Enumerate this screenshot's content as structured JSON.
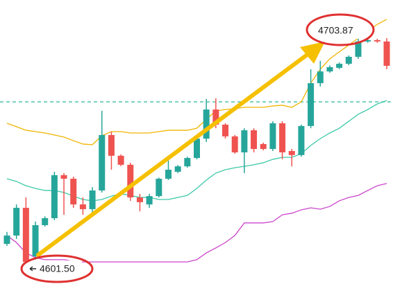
{
  "chart_data": {
    "type": "candlestick",
    "ylim": [
      4592,
      4718
    ],
    "up_color": "#26a69a",
    "down_color": "#ef5350",
    "open": [
      4609.8,
      4613.5,
      4625.8,
      4604.3,
      4618.1,
      4621.2,
      4640.3,
      4638.7,
      4627.3,
      4625.2,
      4633.5,
      4658.1,
      4648.9,
      4644.9,
      4630.4,
      4627.3,
      4631.0,
      4638.7,
      4641.8,
      4644.2,
      4647.9,
      4656.5,
      4669.4,
      4662.7,
      4657.5,
      4650.4,
      4660.2,
      4654.1,
      4651.9,
      4663.3,
      4651.0,
      4649.2,
      4662.1,
      4681.1,
      4686.3,
      4687.9,
      4689.7,
      4692.8,
      4699.6,
      4700.2,
      4699.6
    ],
    "high": [
      4615.1,
      4627.3,
      4630.4,
      4619.7,
      4622.0,
      4641.8,
      4641.2,
      4639.6,
      4630.4,
      4635.0,
      4668.8,
      4659.6,
      4649.5,
      4645.8,
      4632.0,
      4632.0,
      4639.2,
      4648.9,
      4644.8,
      4648.5,
      4658.1,
      4674.1,
      4674.4,
      4663.3,
      4658.1,
      4661.1,
      4661.1,
      4654.7,
      4664.2,
      4664.2,
      4651.9,
      4662.7,
      4687.3,
      4691.0,
      4689.0,
      4690.3,
      4693.4,
      4701.1,
      4703.87,
      4700.8,
      4701.1
    ],
    "low": [
      4608.9,
      4612.0,
      4601.5,
      4602.8,
      4617.5,
      4620.3,
      4622.7,
      4625.8,
      4622.7,
      4623.4,
      4632.6,
      4642.7,
      4644.3,
      4628.9,
      4624.3,
      4625.8,
      4630.4,
      4638.1,
      4641.2,
      4643.6,
      4647.3,
      4655.0,
      4661.1,
      4656.5,
      4649.8,
      4641.2,
      4650.4,
      4651.3,
      4651.0,
      4647.3,
      4644.2,
      4648.5,
      4661.1,
      4679.6,
      4685.7,
      4687.3,
      4689.1,
      4691.9,
      4699.0,
      4699.0,
      4687.3
    ],
    "close": [
      4613.5,
      4625.8,
      4601.8,
      4618.1,
      4621.2,
      4640.3,
      4638.7,
      4627.3,
      4625.2,
      4633.5,
      4658.1,
      4648.9,
      4644.9,
      4630.4,
      4628.3,
      4631.0,
      4638.7,
      4642.7,
      4644.2,
      4647.9,
      4656.5,
      4669.4,
      4662.7,
      4657.5,
      4650.4,
      4660.2,
      4651.9,
      4651.9,
      4663.3,
      4650.4,
      4649.2,
      4662.1,
      4681.1,
      4686.3,
      4688.2,
      4689.7,
      4692.8,
      4699.6,
      4700.2,
      4699.6,
      4688.8
    ],
    "lines": [
      {
        "color": "#f0b400",
        "values": [
          4663.3,
          4661.8,
          4660.2,
          4659.6,
          4659.0,
          4658.1,
          4657.2,
          4655.6,
          4654.1,
          4653.8,
          4657.8,
          4659.6,
          4659.6,
          4659.0,
          4659.0,
          4659.0,
          4659.6,
          4660.2,
          4660.2,
          4660.2,
          4661.1,
          4665.1,
          4668.8,
          4669.4,
          4669.8,
          4670.4,
          4670.4,
          4670.4,
          4671.0,
          4671.3,
          4670.4,
          4672.8,
          4681.1,
          4687.3,
          4691.9,
          4695.0,
          4698.0,
          4701.1,
          4704.2,
          4707.2,
          4709.4
        ]
      },
      {
        "color": "#3cc8a8",
        "values": [
          4638.7,
          4637.5,
          4635.6,
          4634.4,
          4633.5,
          4633.5,
          4632.6,
          4631.0,
          4629.5,
          4628.9,
          4629.5,
          4631.0,
          4632.0,
          4631.3,
          4630.4,
          4630.4,
          4629.5,
          4629.5,
          4630.4,
          4631.3,
          4634.4,
          4638.1,
          4641.2,
          4642.7,
          4643.6,
          4644.2,
          4644.9,
          4645.8,
          4647.3,
          4648.2,
          4648.2,
          4649.8,
          4653.5,
          4656.5,
          4659.0,
          4661.1,
          4664.2,
          4667.3,
          4669.4,
          4671.9,
          4673.4
        ]
      },
      {
        "color": "#cc44cc",
        "values": [
          4613.5,
          4610.4,
          4605.8,
          4603.7,
          4602.8,
          4602.8,
          4602.8,
          4602.1,
          4601.8,
          4601.8,
          4601.8,
          4601.8,
          4601.8,
          4601.8,
          4601.8,
          4601.8,
          4601.8,
          4601.8,
          4601.8,
          4601.8,
          4602.8,
          4605.8,
          4608.0,
          4610.4,
          4613.5,
          4619.1,
          4619.1,
          4619.1,
          4619.7,
          4622.7,
          4623.4,
          4624.9,
          4625.8,
          4625.2,
          4626.4,
          4628.9,
          4630.4,
          4631.3,
          4633.5,
          4635.6,
          4636.6
        ]
      }
    ],
    "reference_line": {
      "value": 4672.8,
      "color": "#3cbfa0"
    },
    "annotations": [
      {
        "text": "4601.50"
      },
      {
        "text": "4703.87"
      }
    ]
  }
}
